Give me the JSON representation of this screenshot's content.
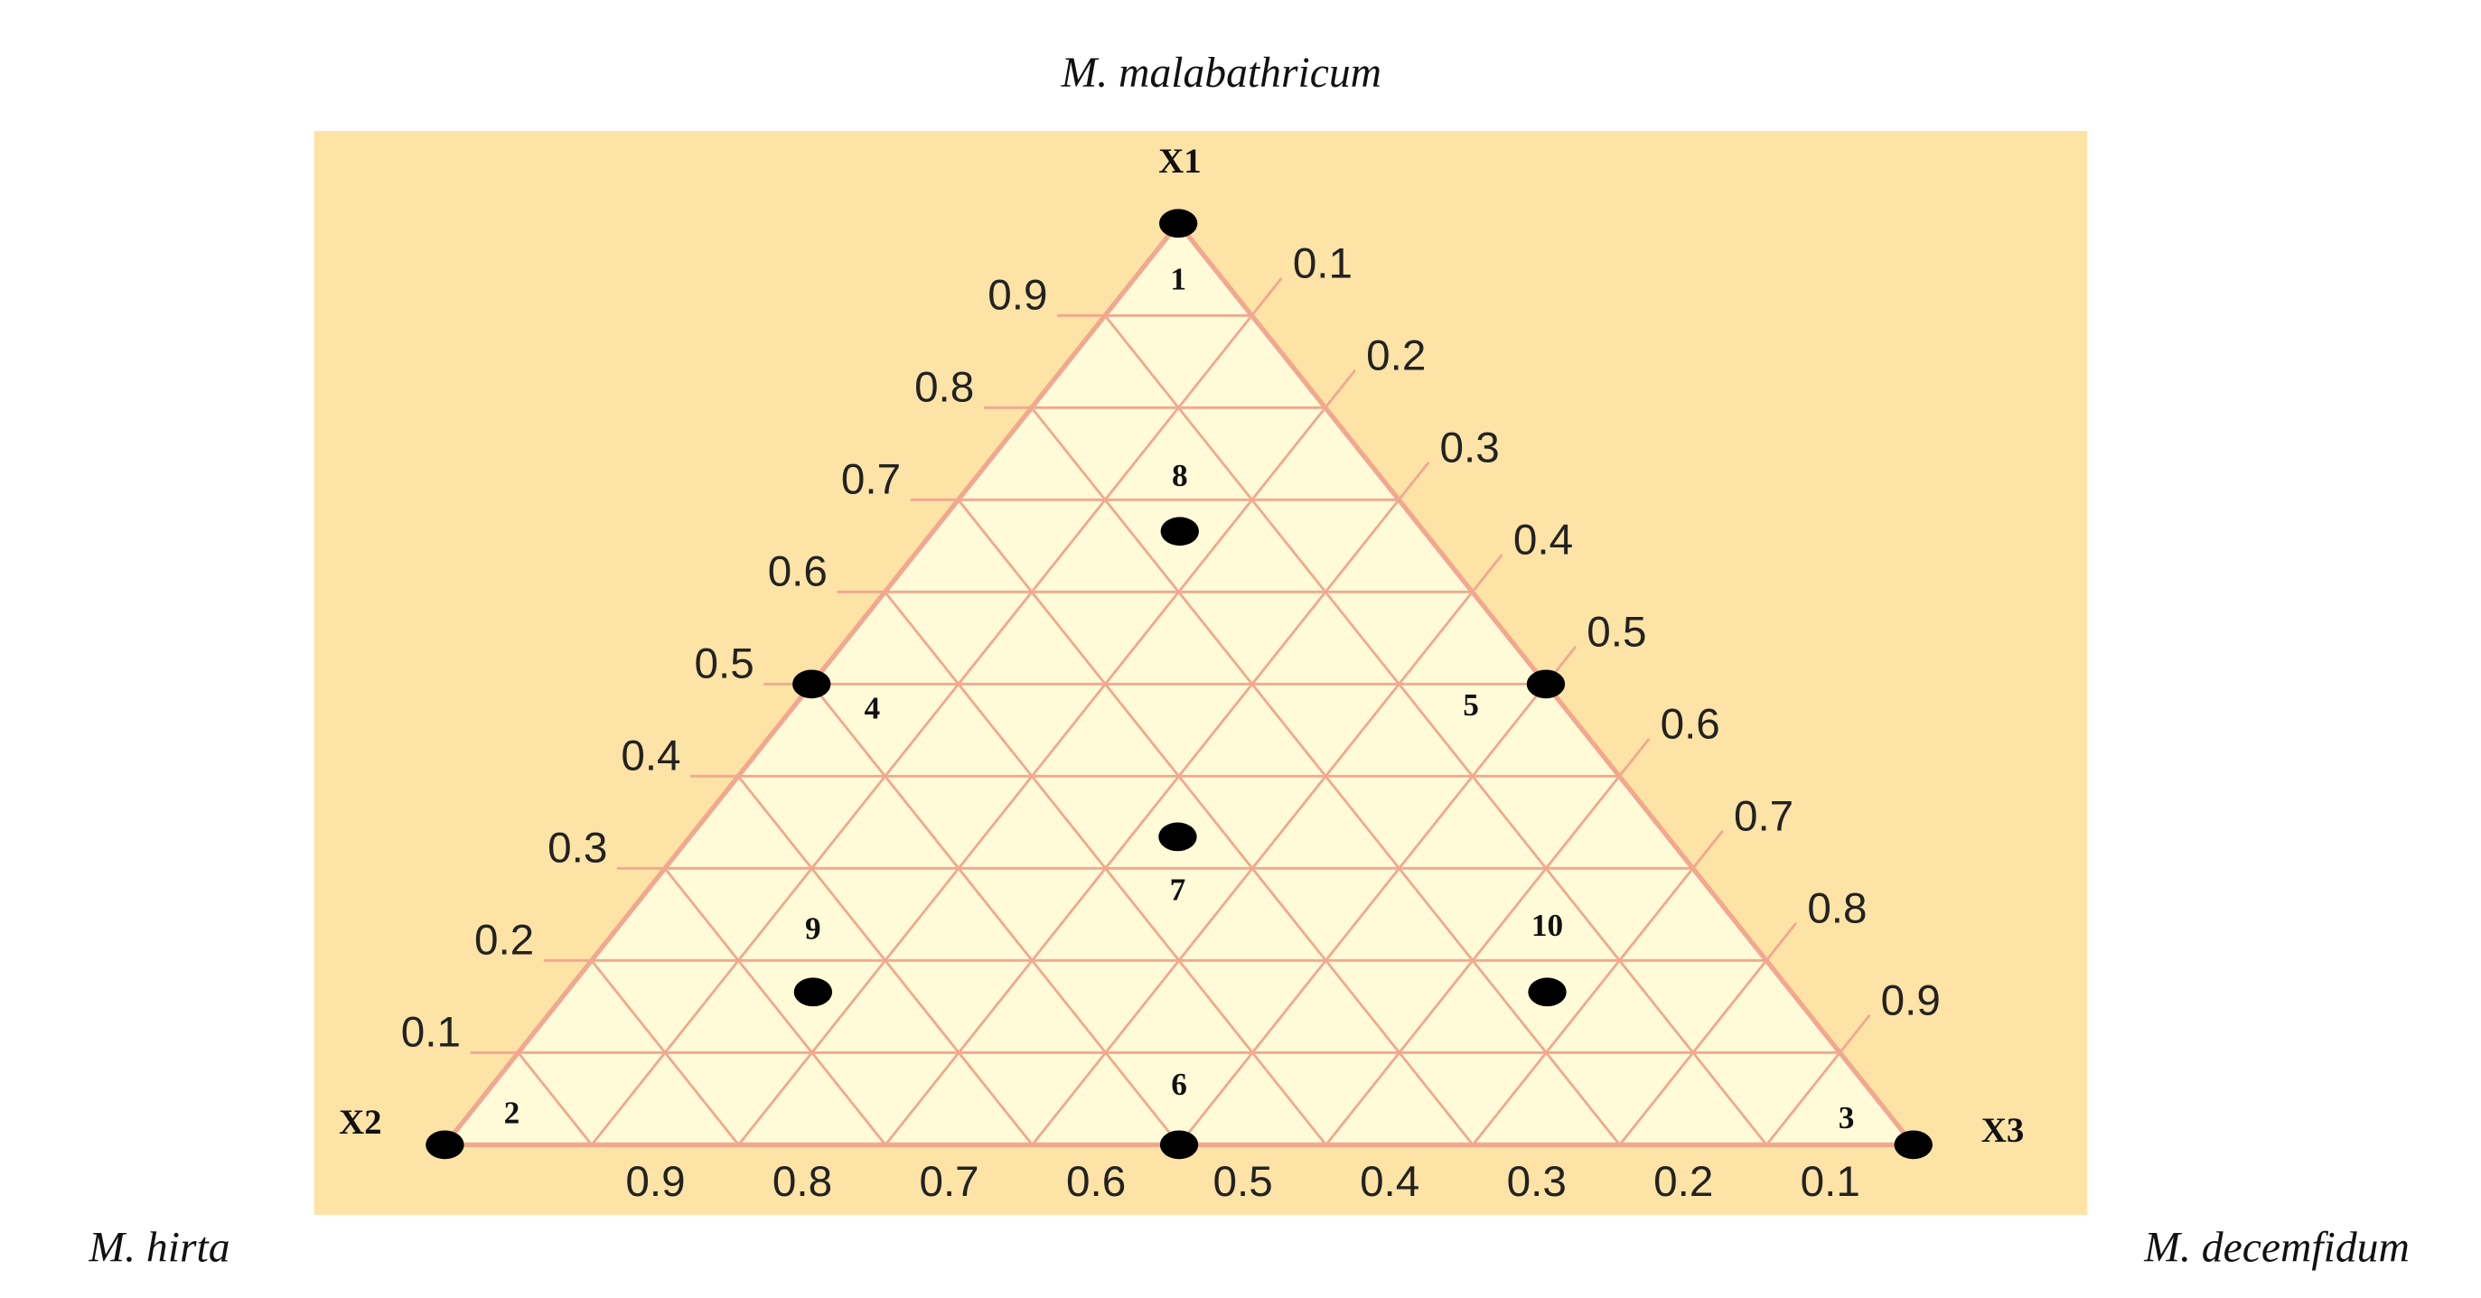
{
  "chart_data": {
    "type": "ternary",
    "components": [
      {
        "vertex": "X1",
        "name": "M. malabathricum"
      },
      {
        "vertex": "X2",
        "name": "M. hirta"
      },
      {
        "vertex": "X3",
        "name": "M. decemfidum"
      }
    ],
    "x1ticks": [
      0.1,
      0.2,
      0.3,
      0.4,
      0.5,
      0.6,
      0.7,
      0.8,
      0.9
    ],
    "x2ticks": [
      0.1,
      0.2,
      0.3,
      0.4,
      0.5,
      0.6,
      0.7,
      0.8,
      0.9
    ],
    "x3ticks": [
      0.1,
      0.2,
      0.3,
      0.4,
      0.5,
      0.6,
      0.7,
      0.8,
      0.9
    ],
    "grid": true,
    "background_color": "#fde3a6",
    "plot_color": "#fffbd9",
    "grid_color": "#f2a88f",
    "point_color": "#000000",
    "points": [
      {
        "label": "1",
        "x1": 1,
        "x2": 0,
        "x3": 0
      },
      {
        "label": "2",
        "x1": 0,
        "x2": 1,
        "x3": 0
      },
      {
        "label": "3",
        "x1": 0,
        "x2": 0,
        "x3": 1
      },
      {
        "label": "4",
        "x1": 0.5,
        "x2": 0.5,
        "x3": 0
      },
      {
        "label": "5",
        "x1": 0.5,
        "x2": 0,
        "x3": 0.5
      },
      {
        "label": "6",
        "x1": 0,
        "x2": 0.5,
        "x3": 0.5
      },
      {
        "label": "7",
        "x1": 0.333,
        "x2": 0.333,
        "x3": 0.333
      },
      {
        "label": "8",
        "x1": 0.667,
        "x2": 0.167,
        "x3": 0.167
      },
      {
        "label": "9",
        "x1": 0.167,
        "x2": 0.667,
        "x3": 0.167
      },
      {
        "label": "10",
        "x1": 0.167,
        "x2": 0.167,
        "x3": 0.667
      }
    ]
  }
}
